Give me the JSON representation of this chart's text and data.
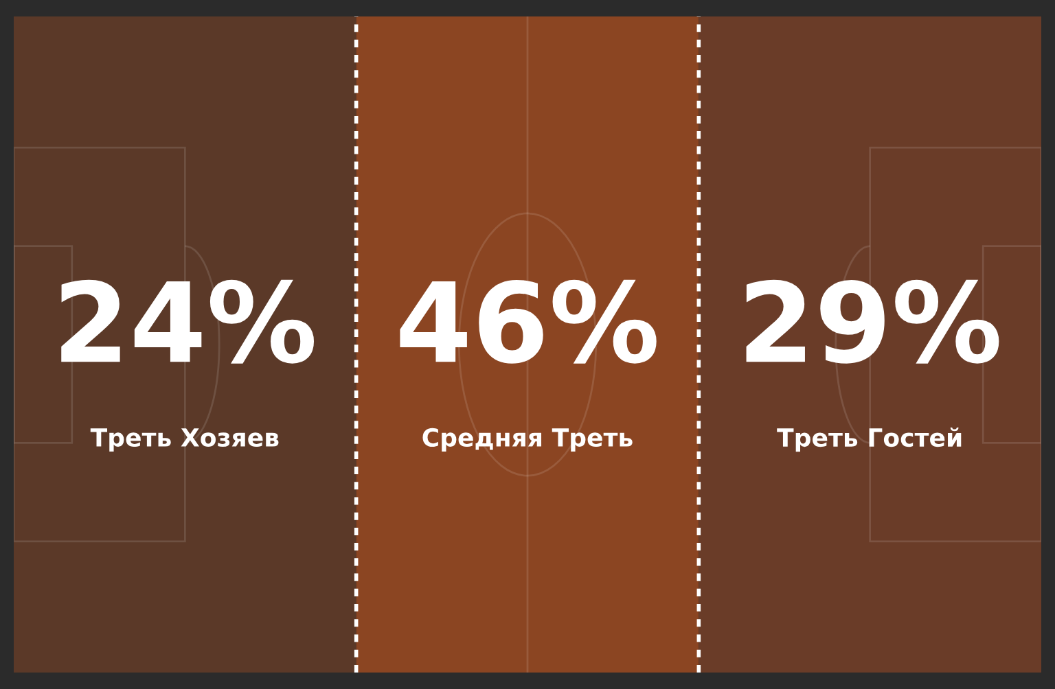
{
  "chart_data": {
    "type": "other",
    "categories": [
      "Треть Хозяев",
      "Средняя Треть",
      "Треть Гостей"
    ],
    "values": [
      24,
      46,
      29
    ],
    "value_labels": [
      "24%",
      "46%",
      "29%"
    ],
    "colors": [
      "#5b3928",
      "#8b4522",
      "#6a3c28"
    ]
  }
}
